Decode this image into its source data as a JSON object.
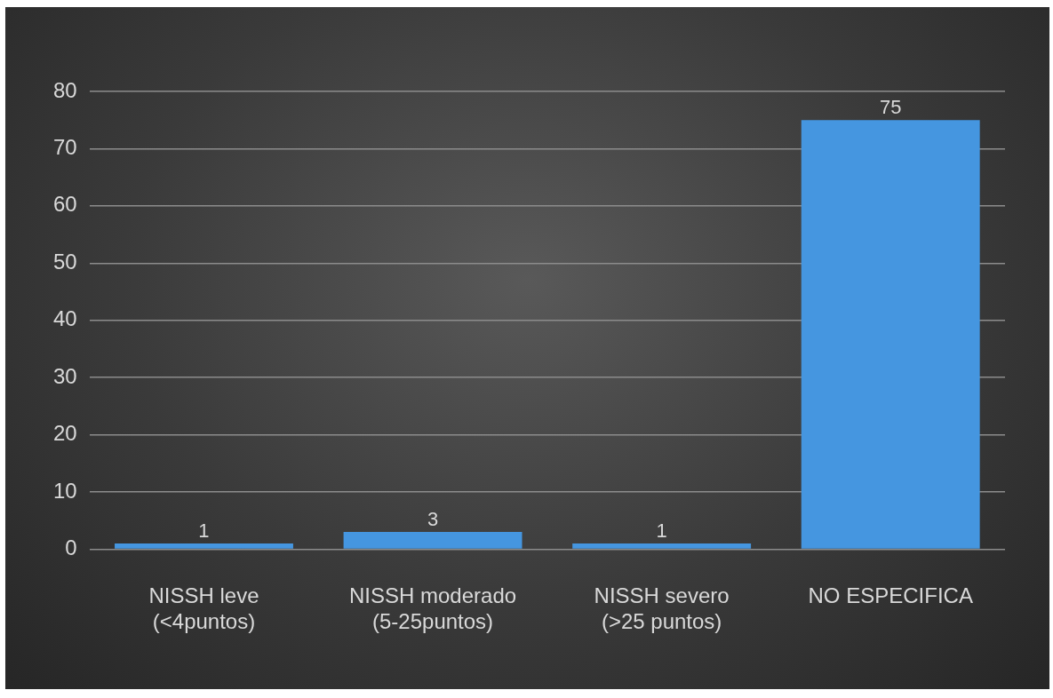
{
  "chart_data": {
    "type": "bar",
    "categories": [
      "NISSH leve (<4puntos)",
      "NISSH moderado (5-25puntos)",
      "NISSH severo (>25 puntos)",
      "NO ESPECIFICA"
    ],
    "values": [
      1,
      3,
      1,
      75
    ],
    "color": "#4596e0",
    "ylim": [
      0,
      80
    ],
    "yticks": [
      0,
      10,
      20,
      30,
      40,
      50,
      60,
      70,
      80
    ],
    "grid": "y",
    "legend": false,
    "data_labels": true
  }
}
